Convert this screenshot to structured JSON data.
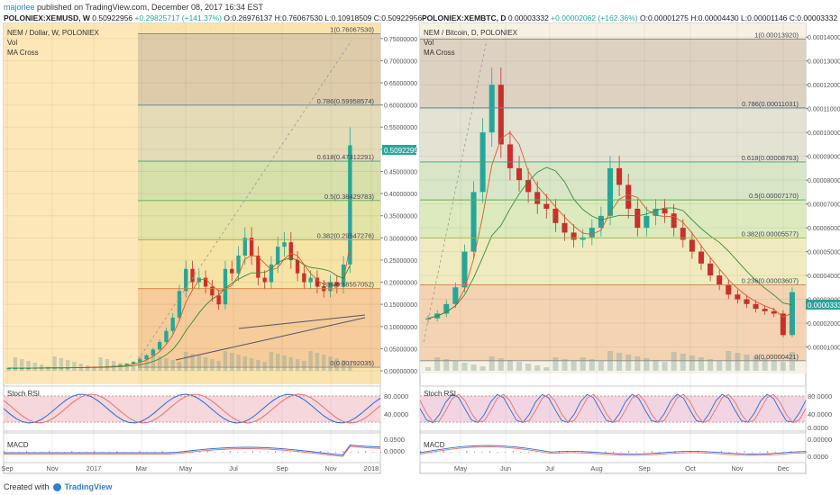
{
  "publish": {
    "user": "majorlee",
    "text": "published on TradingView.com, December 08, 2017 16:34 EST"
  },
  "footer": {
    "created_with": "Created with",
    "brand": "TradingView"
  },
  "left": {
    "header": {
      "symbol": "POLONIEX:XEMUSD, W",
      "close": "0.50922956",
      "change": "+0.29825717 (+141.37%)",
      "o": "O:0.26976137",
      "h": "H:0.76067530",
      "l": "L:0.10918509",
      "c": "C:0.50922956"
    },
    "title": "NEM / Dollar, W, POLONIEX",
    "vol": "Vol",
    "ma": "MA Cross",
    "stoch": "Stoch RSI",
    "macd": "MACD",
    "price_tag": "0.50922956",
    "fib": [
      {
        "label": "1(0.76067530)",
        "value": 0.7606753
      },
      {
        "label": "0.786(0.59958574)",
        "value": 0.59958574
      },
      {
        "label": "0.618(0.47312291)",
        "value": 0.47312291
      },
      {
        "label": "0.5(0.38429783)",
        "value": 0.38429783
      },
      {
        "label": "0.382(0.29547276)",
        "value": 0.29547276
      },
      {
        "label": "0.236(0.18557052)",
        "value": 0.18557052
      },
      {
        "label": "0(0.00792035)",
        "value": 0.00792035
      }
    ],
    "y_ticks": [
      "0.75000000",
      "0.70000000",
      "0.65000000",
      "0.60000000",
      "0.55000000",
      "0.50000000",
      "0.45000000",
      "0.40000000",
      "0.35000000",
      "0.30000000",
      "0.25000000",
      "0.20000000",
      "0.15000000",
      "0.10000000",
      "0.05000000",
      "0.00000000"
    ],
    "x_ticks": [
      "Sep",
      "Nov",
      "2017",
      "Mar",
      "May",
      "Jul",
      "Sep",
      "Nov",
      "2018"
    ],
    "stoch_ticks": [
      "80.0000",
      "40.0000"
    ],
    "macd_ticks": [
      "0.0500",
      "0.0000"
    ]
  },
  "right": {
    "header": {
      "symbol": "POLONIEX:XEMBTC, D",
      "close": "0.00003332",
      "change": "+0.00002062 (+162.36%)",
      "o": "O:0.00001275",
      "h": "H:0.00004430",
      "l": "L:0.00001146",
      "c": "C:0.00003332"
    },
    "title": "NEM / Bitcoin, D, POLONIEX",
    "vol": "Vol",
    "ma": "MA Cross",
    "stoch": "Stoch RSI",
    "macd": "MACD",
    "price_tag": "0.00003332",
    "fib": [
      {
        "label": "1(0.00013920)",
        "value": 0.0001392
      },
      {
        "label": "0.786(0.00011031)",
        "value": 0.00011031
      },
      {
        "label": "0.618(0.00008763)",
        "value": 8.763e-05
      },
      {
        "label": "0.5(0.00007170)",
        "value": 7.17e-05
      },
      {
        "label": "0.382(0.00005577)",
        "value": 5.577e-05
      },
      {
        "label": "0.236(0.00003607)",
        "value": 3.607e-05
      },
      {
        "label": "0(0.00000421)",
        "value": 4.21e-06
      }
    ],
    "y_ticks": [
      "0.00014000",
      "0.00013000",
      "0.00012000",
      "0.00011000",
      "0.00010000",
      "0.00009000",
      "0.00008000",
      "0.00007000",
      "0.00006000",
      "0.00005000",
      "0.00004000",
      "0.00003000",
      "0.00002000",
      "0.00001000"
    ],
    "x_ticks": [
      "May",
      "Jun",
      "Jul",
      "Aug",
      "Sep",
      "Oct",
      "Nov",
      "Dec"
    ],
    "stoch_ticks": [
      "80.0000",
      "40.0000",
      "0.0000"
    ],
    "macd_ticks": [
      "0.00000",
      "0.0000"
    ]
  },
  "chart_data": [
    {
      "type": "candlestick",
      "series_label": "POLONIEX:XEMUSD, W",
      "ylim": [
        0,
        0.78
      ],
      "fib_levels": [
        0.7606753,
        0.59958574,
        0.47312291,
        0.38429783,
        0.29547276,
        0.18557052,
        0.00792035
      ],
      "candles_approx": [
        0.006,
        0.006,
        0.006,
        0.006,
        0.007,
        0.007,
        0.007,
        0.007,
        0.007,
        0.007,
        0.008,
        0.008,
        0.008,
        0.009,
        0.009,
        0.01,
        0.011,
        0.013,
        0.016,
        0.02,
        0.026,
        0.035,
        0.048,
        0.065,
        0.09,
        0.12,
        0.18,
        0.23,
        0.2,
        0.21,
        0.19,
        0.17,
        0.15,
        0.23,
        0.22,
        0.26,
        0.3,
        0.26,
        0.21,
        0.2,
        0.24,
        0.28,
        0.29,
        0.25,
        0.22,
        0.2,
        0.21,
        0.19,
        0.18,
        0.2,
        0.19,
        0.24,
        0.509
      ]
    },
    {
      "type": "candlestick",
      "series_label": "POLONIEX:XEMBTC, D",
      "ylim": [
        0,
        0.000145
      ],
      "fib_levels": [
        0.0001392,
        0.00011031,
        8.763e-05,
        7.17e-05,
        5.577e-05,
        3.607e-05,
        4.21e-06
      ],
      "candles_approx": [
        2.2e-05,
        2.4e-05,
        2.8e-05,
        3.5e-05,
        5e-05,
        7.5e-05,
        0.0001,
        0.00012,
        9.5e-05,
        8.5e-05,
        8e-05,
        7.5e-05,
        7e-05,
        6.8e-05,
        6.2e-05,
        5.8e-05,
        5.5e-05,
        5.6e-05,
        6e-05,
        6.5e-05,
        8.5e-05,
        7.8e-05,
        6.8e-05,
        6e-05,
        6.5e-05,
        6.8e-05,
        6.6e-05,
        6e-05,
        5.5e-05,
        5e-05,
        4.5e-05,
        4e-05,
        3.6e-05,
        3.2e-05,
        3e-05,
        2.8e-05,
        2.6e-05,
        2.5e-05,
        2.4e-05,
        1.5e-05,
        3.3e-05
      ]
    }
  ]
}
